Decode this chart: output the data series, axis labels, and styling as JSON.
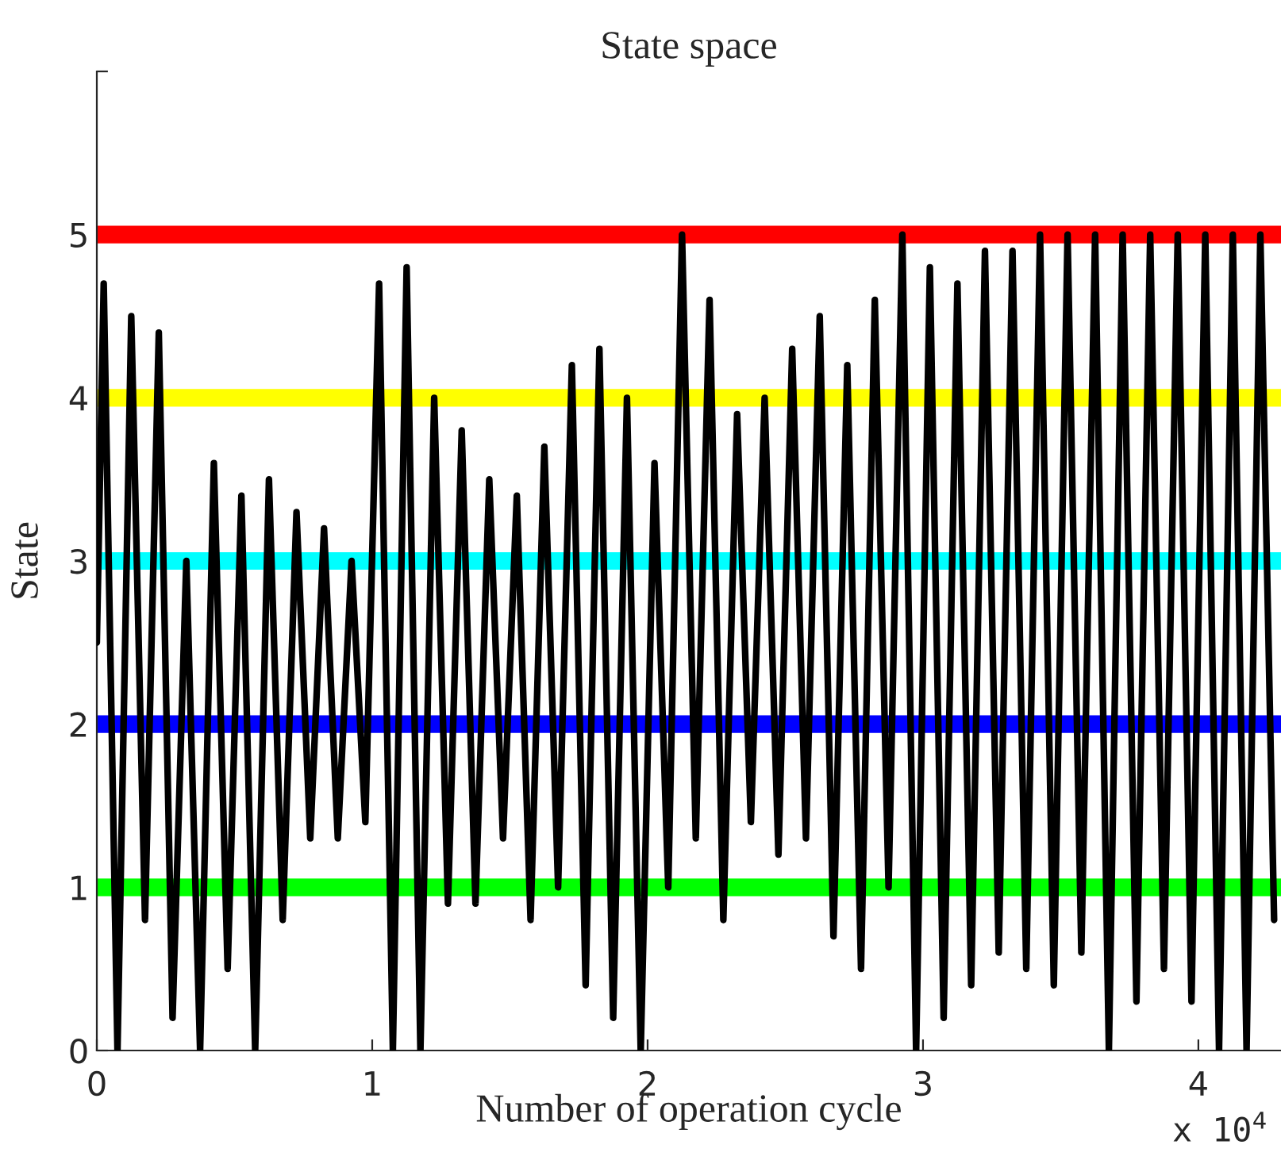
{
  "chart_data": {
    "type": "line",
    "title": "State space",
    "xlabel": "Number of operation cycle",
    "ylabel": "State",
    "annotations": [
      "x 10$^{4}$"
    ],
    "xlim": [
      0,
      4.3
    ],
    "ylim": [
      0,
      6
    ],
    "xticks": [
      0,
      1,
      2,
      3,
      4
    ],
    "yticks": [
      0,
      1,
      2,
      3,
      4,
      5,
      {
        "value": 6,
        "label": null
      }
    ],
    "grid": false,
    "legend": false,
    "marker": "none",
    "line_style": "solid",
    "ref_lines": [
      {
        "axis": "y",
        "value": 1,
        "color": "#00ff00"
      },
      {
        "axis": "y",
        "value": 2,
        "color": "#0000ff"
      },
      {
        "axis": "y",
        "value": 3,
        "color": "#00ffff"
      },
      {
        "axis": "y",
        "value": 4,
        "color": "#ffff00"
      },
      {
        "axis": "y",
        "value": 5,
        "color": "#ff0000"
      }
    ],
    "series": [
      {
        "color": "#000000",
        "x": [
          0,
          0.025,
          0.075,
          0.125,
          0.175,
          0.225,
          0.275,
          0.325,
          0.375,
          0.425,
          0.475,
          0.525,
          0.575,
          0.625,
          0.675,
          0.725,
          0.775,
          0.825,
          0.875,
          0.925,
          0.975,
          1.025,
          1.075,
          1.125,
          1.175,
          1.225,
          1.275,
          1.325,
          1.375,
          1.425,
          1.475,
          1.525,
          1.575,
          1.625,
          1.675,
          1.725,
          1.775,
          1.825,
          1.875,
          1.925,
          1.975,
          2.025,
          2.075,
          2.125,
          2.175,
          2.225,
          2.275,
          2.325,
          2.375,
          2.425,
          2.475,
          2.525,
          2.575,
          2.625,
          2.675,
          2.725,
          2.775,
          2.825,
          2.875,
          2.925,
          2.975,
          3.025,
          3.075,
          3.125,
          3.175,
          3.225,
          3.275,
          3.325,
          3.375,
          3.425,
          3.475,
          3.525,
          3.575,
          3.625,
          3.675,
          3.725,
          3.775,
          3.825,
          3.875,
          3.925,
          3.975,
          4.025,
          4.075,
          4.125,
          4.175,
          4.225,
          4.275
        ],
        "values": [
          2.5,
          4.7,
          0,
          4.5,
          0.8,
          4.4,
          0.2,
          3.0,
          0,
          3.6,
          0.5,
          3.4,
          0,
          3.5,
          0.8,
          3.3,
          1.3,
          3.2,
          1.3,
          3.0,
          1.4,
          4.7,
          0,
          4.8,
          0,
          4.0,
          0.9,
          3.8,
          0.9,
          3.5,
          1.3,
          3.4,
          0.8,
          3.7,
          1.0,
          4.2,
          0.4,
          4.3,
          0.2,
          4.0,
          0,
          3.6,
          1.0,
          5.0,
          1.3,
          4.6,
          0.8,
          3.9,
          1.4,
          4.0,
          1.2,
          4.3,
          1.3,
          4.5,
          0.7,
          4.2,
          0.5,
          4.6,
          1.0,
          5.0,
          0,
          4.8,
          0.2,
          4.7,
          0.4,
          4.9,
          0.6,
          4.9,
          0.5,
          5.0,
          0.4,
          5.0,
          0.6,
          5.0,
          0,
          5.0,
          0.3,
          5.0,
          0.5,
          5.0,
          0.3,
          5.0,
          0,
          5.0,
          0,
          5.0,
          0.8
        ]
      }
    ]
  }
}
